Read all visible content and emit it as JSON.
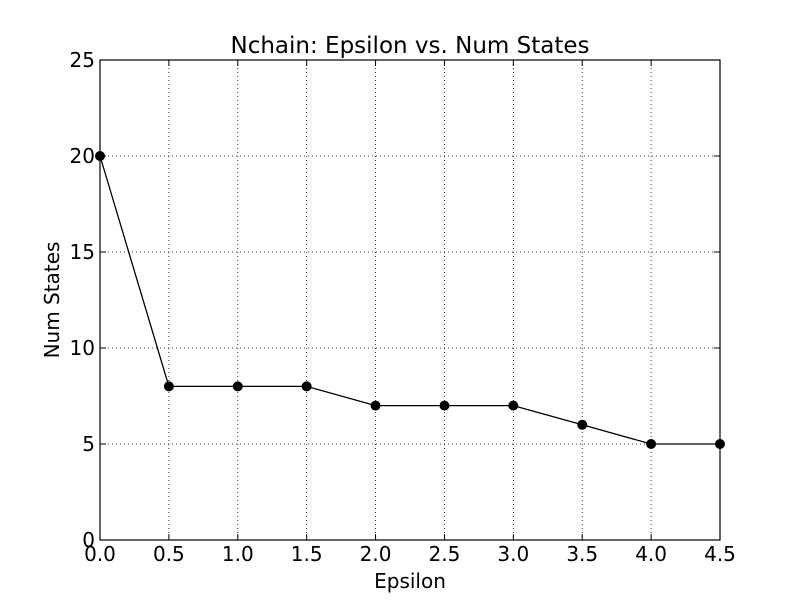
{
  "chart_data": {
    "type": "line",
    "title": "Nchain: Epsilon vs. Num States",
    "xlabel": "Epsilon",
    "ylabel": "Num States",
    "xlim": [
      0.0,
      4.5
    ],
    "ylim": [
      0,
      25
    ],
    "xticks": [
      0.0,
      0.5,
      1.0,
      1.5,
      2.0,
      2.5,
      3.0,
      3.5,
      4.0,
      4.5
    ],
    "xtick_labels": [
      "0.0",
      "0.5",
      "1.0",
      "1.5",
      "2.0",
      "2.5",
      "3.0",
      "3.5",
      "4.0",
      "4.5"
    ],
    "yticks": [
      0,
      5,
      10,
      15,
      20,
      25
    ],
    "ytick_labels": [
      "0",
      "5",
      "10",
      "15",
      "20",
      "25"
    ],
    "grid": true,
    "series": [
      {
        "x": [
          0.0,
          0.5,
          1.0,
          1.5,
          2.0,
          2.5,
          3.0,
          3.5,
          4.0,
          4.5
        ],
        "y": [
          20,
          8,
          8,
          8,
          7,
          7,
          7,
          6,
          5,
          5
        ],
        "color": "#000000",
        "marker": "circle"
      }
    ]
  }
}
